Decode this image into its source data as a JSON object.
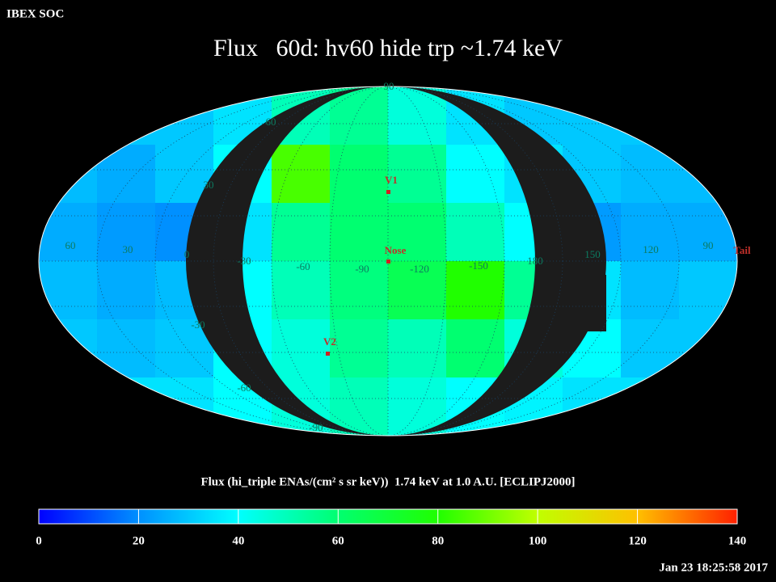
{
  "header": {
    "org": "IBEX SOC",
    "title": "Flux   60d: hv60 hide trp ~1.74 keV"
  },
  "map": {
    "markers": [
      "V1",
      "Nose",
      "V2",
      "Tail"
    ],
    "longitude_labels": [
      "60",
      "30",
      "0",
      "-30",
      "-60",
      "-90",
      "-120",
      "-150",
      "180",
      "150",
      "120",
      "90"
    ],
    "latitude_labels": [
      "90",
      "60",
      "30",
      "-30",
      "-60",
      "-90"
    ],
    "flux_grid": [
      [
        30,
        30,
        30,
        35,
        50,
        55,
        45,
        35,
        30,
        30,
        30,
        30
      ],
      [
        28,
        25,
        30,
        40,
        85,
        60,
        55,
        40,
        35,
        30,
        28,
        28
      ],
      [
        25,
        22,
        20,
        35,
        55,
        60,
        60,
        50,
        40,
        22,
        25,
        25
      ],
      [
        28,
        25,
        28,
        40,
        50,
        58,
        65,
        80,
        55,
        35,
        28,
        30
      ],
      [
        30,
        28,
        30,
        40,
        45,
        55,
        50,
        60,
        45,
        40,
        30,
        30
      ],
      [
        35,
        35,
        35,
        40,
        45,
        50,
        45,
        40,
        38,
        35,
        35,
        35
      ]
    ]
  },
  "colorbar": {
    "label": "Flux (hi_triple ENAs/(cm² s sr keV))  1.74 keV at 1.0 A.U. [ECLIPJ2000]",
    "lim": [
      0,
      140
    ],
    "ticks": [
      0,
      20,
      40,
      60,
      80,
      100,
      120,
      140
    ],
    "colormap": [
      "#0000ff",
      "#0090ff",
      "#00ffff",
      "#00ff70",
      "#20ff00",
      "#c0ff00",
      "#ffc000",
      "#ff2000"
    ]
  },
  "footer": {
    "timestamp": "Jan 23 18:25:58 2017"
  }
}
